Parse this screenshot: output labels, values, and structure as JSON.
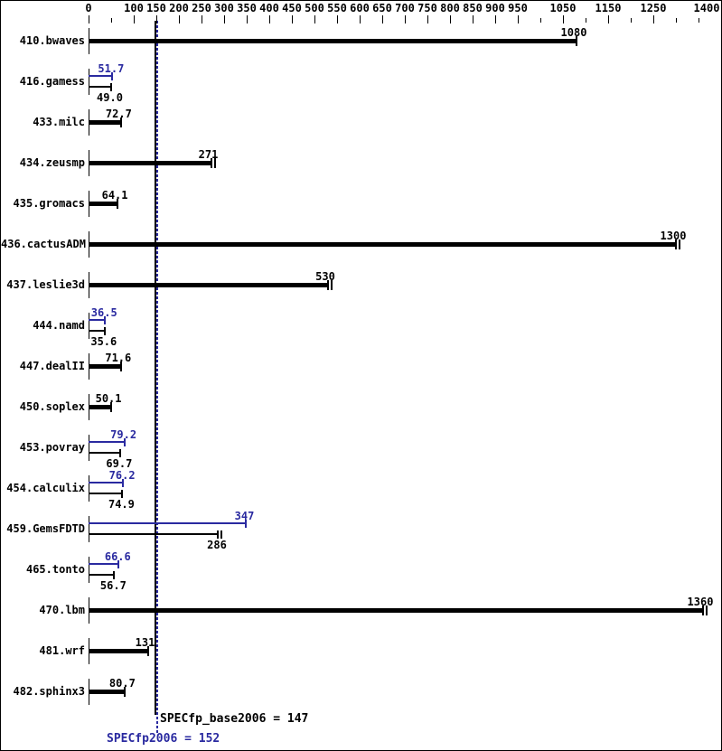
{
  "chart_data": {
    "type": "bar",
    "orientation": "horizontal",
    "xlim": [
      0,
      1400
    ],
    "x_major_ticks": [
      0,
      100,
      150,
      200,
      250,
      300,
      350,
      400,
      450,
      500,
      550,
      600,
      650,
      700,
      750,
      800,
      850,
      900,
      950,
      1050,
      1150,
      1250,
      1400
    ],
    "x_minor_ticks": [
      50,
      1000,
      1100,
      1200,
      1300,
      1350
    ],
    "grid": false,
    "colors": {
      "base": "#000000",
      "peak": "#2a2aa0"
    },
    "series_legend": {
      "base": "SPECfp_base2006 (black bars)",
      "peak": "SPECfp2006 peak (blue bars)"
    },
    "benchmarks": [
      {
        "name": "410.bwaves",
        "peak": null,
        "base": {
          "value": 1080,
          "label": "1080",
          "cap": "single"
        }
      },
      {
        "name": "416.gamess",
        "peak": {
          "value": 51.7,
          "label": "51.7",
          "cap": "single"
        },
        "base": {
          "value": 49.0,
          "label": "49.0",
          "cap": "single"
        }
      },
      {
        "name": "433.milc",
        "peak": null,
        "base": {
          "value": 72.7,
          "label": "72.7",
          "cap": "single"
        }
      },
      {
        "name": "434.zeusmp",
        "peak": null,
        "base": {
          "value": 271,
          "label": "271",
          "cap": "double"
        }
      },
      {
        "name": "435.gromacs",
        "peak": null,
        "base": {
          "value": 64.1,
          "label": "64.1",
          "cap": "single"
        }
      },
      {
        "name": "436.cactusADM",
        "peak": null,
        "base": {
          "value": 1300,
          "label": "1300",
          "cap": "double"
        }
      },
      {
        "name": "437.leslie3d",
        "peak": null,
        "base": {
          "value": 530,
          "label": "530",
          "cap": "double"
        }
      },
      {
        "name": "444.namd",
        "peak": {
          "value": 36.5,
          "label": "36.5",
          "cap": "single"
        },
        "base": {
          "value": 35.6,
          "label": "35.6",
          "cap": "single"
        }
      },
      {
        "name": "447.dealII",
        "peak": null,
        "base": {
          "value": 71.6,
          "label": "71.6",
          "cap": "single"
        }
      },
      {
        "name": "450.soplex",
        "peak": null,
        "base": {
          "value": 50.1,
          "label": "50.1",
          "cap": "single"
        }
      },
      {
        "name": "453.povray",
        "peak": {
          "value": 79.2,
          "label": "79.2",
          "cap": "single"
        },
        "base": {
          "value": 69.7,
          "label": "69.7",
          "cap": "single"
        }
      },
      {
        "name": "454.calculix",
        "peak": {
          "value": 76.2,
          "label": "76.2",
          "cap": "single"
        },
        "base": {
          "value": 74.9,
          "label": "74.9",
          "cap": "single"
        }
      },
      {
        "name": "459.GemsFDTD",
        "peak": {
          "value": 347,
          "label": "347",
          "cap": "single"
        },
        "base": {
          "value": 286,
          "label": "286",
          "cap": "double"
        }
      },
      {
        "name": "465.tonto",
        "peak": {
          "value": 66.6,
          "label": "66.6",
          "cap": "single"
        },
        "base": {
          "value": 56.7,
          "label": "56.7",
          "cap": "single"
        }
      },
      {
        "name": "470.lbm",
        "peak": null,
        "base": {
          "value": 1360,
          "label": "1360",
          "cap": "double"
        }
      },
      {
        "name": "481.wrf",
        "peak": null,
        "base": {
          "value": 131,
          "label": "131",
          "cap": "single"
        }
      },
      {
        "name": "482.sphinx3",
        "peak": null,
        "base": {
          "value": 80.7,
          "label": "80.7",
          "cap": "single"
        }
      }
    ],
    "summary": {
      "base_value": 147,
      "peak_value": 152,
      "base_text": "SPECfp_base2006 = 147",
      "peak_text": "SPECfp2006 = 152"
    }
  }
}
